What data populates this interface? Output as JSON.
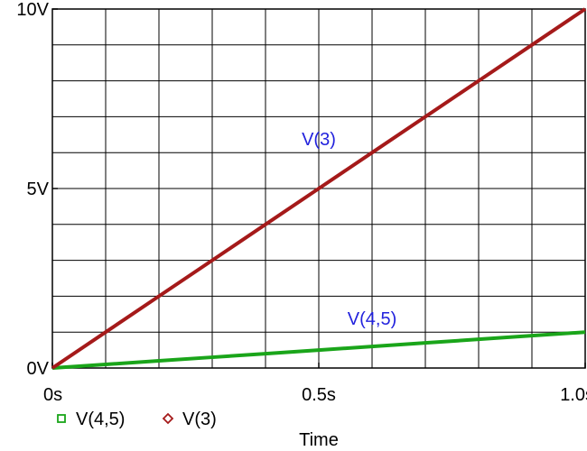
{
  "chart_data": {
    "type": "line",
    "title": "",
    "xlabel": "Time",
    "ylabel": "",
    "xlim": [
      0,
      1.0
    ],
    "ylim": [
      0,
      10
    ],
    "grid": true,
    "x_ticks": [
      {
        "value": 0,
        "label": "0s"
      },
      {
        "value": 0.5,
        "label": "0.5s"
      },
      {
        "value": 1.0,
        "label": "1.0s"
      }
    ],
    "y_ticks": [
      {
        "value": 0,
        "label": "0V"
      },
      {
        "value": 5,
        "label": "5V"
      },
      {
        "value": 10,
        "label": "10V"
      }
    ],
    "legend_position": "bottom-left",
    "series": [
      {
        "name": "V(4,5)",
        "color": "#1aa51a",
        "marker": "square",
        "x": [
          0,
          0.1,
          0.2,
          0.3,
          0.4,
          0.5,
          0.6,
          0.7,
          0.8,
          0.9,
          1.0
        ],
        "values": [
          0,
          0.1,
          0.2,
          0.3,
          0.4,
          0.5,
          0.6,
          0.7,
          0.8,
          0.9,
          1.0
        ]
      },
      {
        "name": "V(3)",
        "color": "#a51a1a",
        "marker": "diamond",
        "x": [
          0,
          0.1,
          0.2,
          0.3,
          0.4,
          0.5,
          0.6,
          0.7,
          0.8,
          0.9,
          1.0
        ],
        "values": [
          0,
          1,
          2,
          3,
          4,
          5,
          6,
          7,
          8,
          9,
          10
        ]
      }
    ],
    "annotations": [
      {
        "text": "V(3)",
        "x": 0.5,
        "y": 6.2,
        "color": "#2222dd"
      },
      {
        "text": "V(4,5)",
        "x": 0.6,
        "y": 1.2,
        "color": "#2222dd"
      }
    ]
  }
}
